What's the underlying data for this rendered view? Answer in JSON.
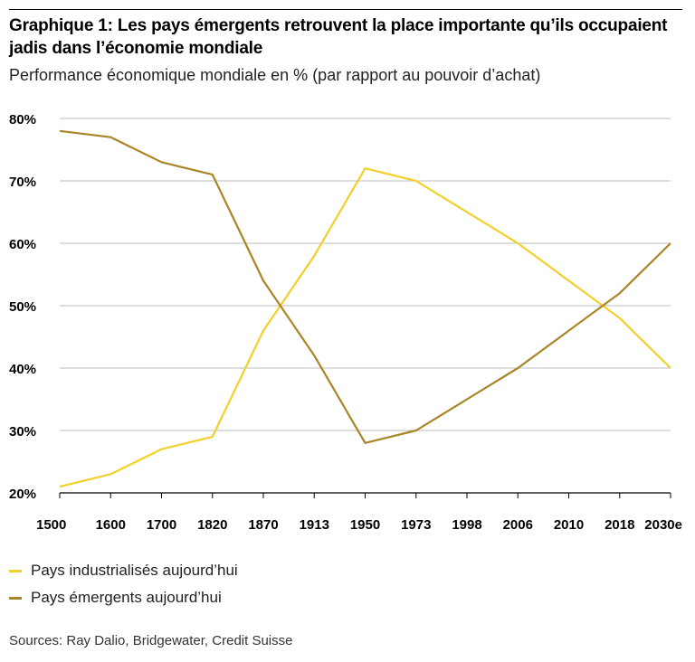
{
  "header": {
    "title": "Graphique 1: Les pays émergents retrouvent la place importante qu’ils occupaient jadis dans l’économie mondiale",
    "subtitle": "Performance économique mondiale en % (par rapport au pouvoir d’achat)"
  },
  "chart_data": {
    "type": "line",
    "categories": [
      "1500",
      "1600",
      "1700",
      "1820",
      "1870",
      "1913",
      "1950",
      "1973",
      "1998",
      "2006",
      "2010",
      "2018",
      "2030e"
    ],
    "y_ticks": [
      "80%",
      "70%",
      "60%",
      "50%",
      "40%",
      "30%",
      "20%"
    ],
    "ylim": [
      20,
      80
    ],
    "grid": true,
    "legend_position": "bottom-left",
    "series": [
      {
        "name": "Pays industrialisés aujourd’hui",
        "color": "#F2D02A",
        "values": [
          21,
          23,
          27,
          29,
          46,
          58,
          72,
          70,
          65,
          60,
          54,
          48,
          40
        ]
      },
      {
        "name": "Pays émergents aujourd’hui",
        "color": "#A88526",
        "values": [
          78,
          77,
          73,
          71,
          54,
          42,
          28,
          30,
          35,
          40,
          46,
          52,
          60
        ]
      }
    ]
  },
  "footer": {
    "source": "Sources: Ray Dalio, Bridgewater, Credit Suisse"
  }
}
